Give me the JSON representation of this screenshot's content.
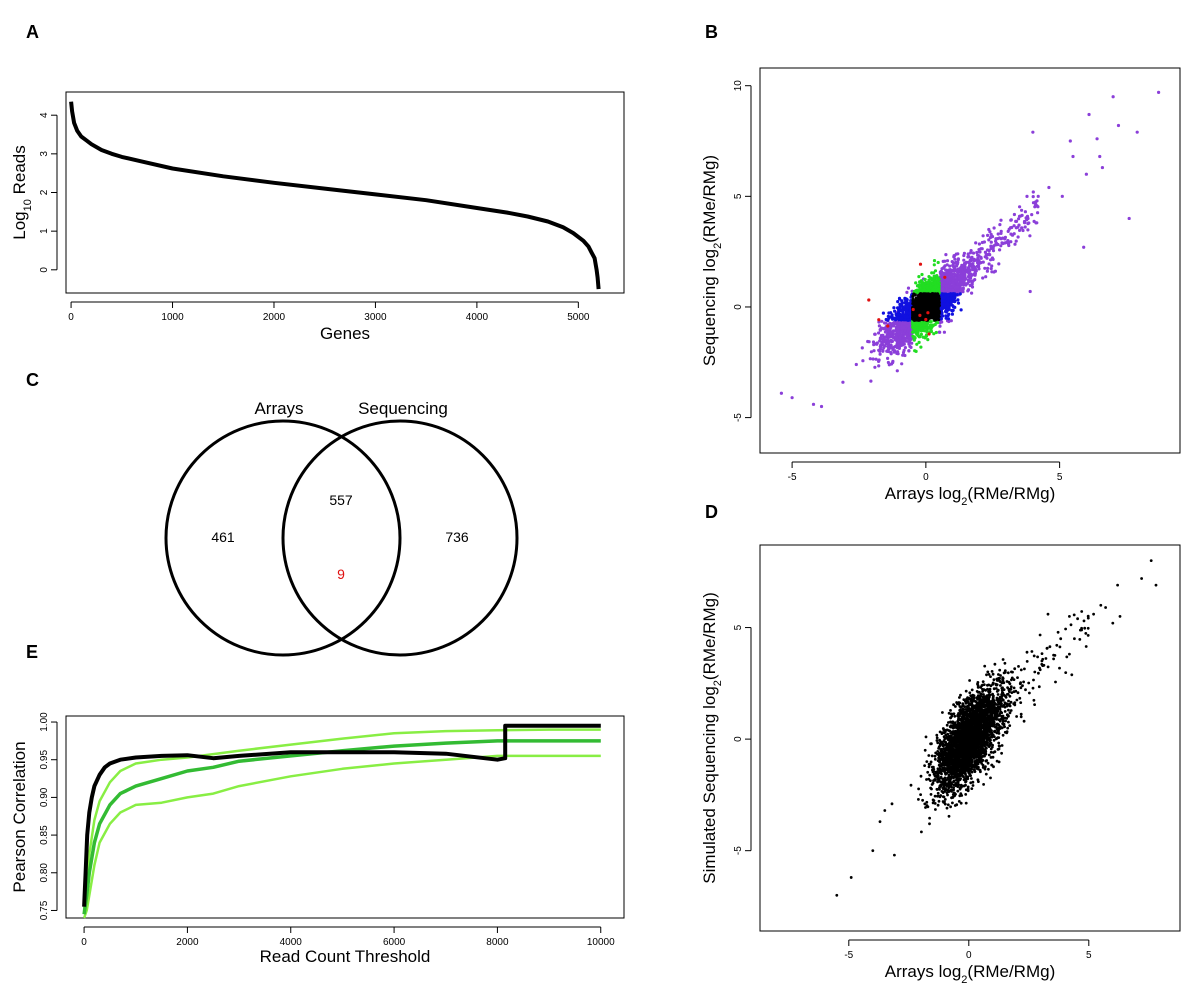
{
  "figure": {
    "panel_letters": [
      "A",
      "B",
      "C",
      "D",
      "E"
    ]
  },
  "chart_data": [
    {
      "id": "A",
      "type": "line",
      "title": "",
      "xlabel": "Genes",
      "ylabel": "Log10 Reads",
      "ylabel_parts": {
        "prefix": "Log",
        "sub": "10",
        "suffix": " Reads"
      },
      "xlim": [
        -50,
        5450
      ],
      "ylim": [
        -0.6,
        4.6
      ],
      "xticks": [
        0,
        1000,
        2000,
        3000,
        4000,
        5000
      ],
      "yticks": [
        0,
        1,
        2,
        3,
        4
      ],
      "series": [
        {
          "name": "reads",
          "color": "#000000",
          "x": [
            0,
            10,
            30,
            60,
            100,
            150,
            200,
            300,
            400,
            500,
            700,
            1000,
            1500,
            2000,
            2500,
            3000,
            3500,
            4000,
            4300,
            4500,
            4700,
            4850,
            4950,
            5050,
            5100,
            5130,
            5160,
            5180,
            5190,
            5200
          ],
          "y": [
            4.35,
            4.1,
            3.8,
            3.6,
            3.45,
            3.35,
            3.25,
            3.1,
            3.0,
            2.92,
            2.8,
            2.62,
            2.42,
            2.25,
            2.1,
            1.95,
            1.8,
            1.6,
            1.48,
            1.38,
            1.25,
            1.1,
            0.95,
            0.75,
            0.6,
            0.45,
            0.3,
            0.0,
            -0.2,
            -0.5
          ]
        }
      ]
    },
    {
      "id": "B",
      "type": "scatter",
      "xlabel": "Arrays log2(RMe/RMg)",
      "ylabel": "Sequencing log2(RMe/RMg)",
      "xlabel_parts": {
        "prefix": "Arrays log",
        "sub": "2",
        "suffix": "(RMe/RMg)"
      },
      "ylabel_parts": {
        "prefix": "Sequencing log",
        "sub": "2",
        "suffix": "(RMe/RMg)"
      },
      "xlim": [
        -6.2,
        9.5
      ],
      "ylim": [
        -6.6,
        10.8
      ],
      "xticks": [
        -5,
        0,
        5
      ],
      "yticks": [
        -5,
        0,
        5,
        10
      ],
      "groups": [
        {
          "name": "both",
          "color": "#8b3fd9"
        },
        {
          "name": "arrays-only",
          "color": "#1010e0"
        },
        {
          "name": "sequencing-only",
          "color": "#22dd22"
        },
        {
          "name": "neither",
          "color": "#000000"
        },
        {
          "name": "discordant",
          "color": "#e01010"
        }
      ],
      "highlight_points": [
        {
          "x": 8.7,
          "y": 9.7
        },
        {
          "x": 7.0,
          "y": 9.5
        },
        {
          "x": 6.1,
          "y": 8.7
        },
        {
          "x": 7.2,
          "y": 8.2
        },
        {
          "x": 4.0,
          "y": 7.9
        },
        {
          "x": 7.9,
          "y": 7.9
        },
        {
          "x": 6.4,
          "y": 7.6
        },
        {
          "x": 5.4,
          "y": 7.5
        },
        {
          "x": 6.5,
          "y": 6.8
        },
        {
          "x": 5.5,
          "y": 6.8
        },
        {
          "x": 6.6,
          "y": 6.3
        },
        {
          "x": 6.0,
          "y": 6.0
        },
        {
          "x": 7.6,
          "y": 4.0
        },
        {
          "x": 5.9,
          "y": 2.7
        },
        {
          "x": 3.9,
          "y": 0.7
        },
        {
          "x": -5.4,
          "y": -3.9
        },
        {
          "x": -5.0,
          "y": -4.1
        },
        {
          "x": -4.2,
          "y": -4.4
        },
        {
          "x": -3.9,
          "y": -4.5
        },
        {
          "x": -3.1,
          "y": -3.4
        },
        {
          "x": -2.6,
          "y": -2.6
        },
        {
          "x": 5.1,
          "y": 5.0
        },
        {
          "x": 4.6,
          "y": 5.4
        },
        {
          "x": 4.2,
          "y": 5.0
        }
      ]
    },
    {
      "id": "C",
      "type": "venn",
      "sets": [
        "Arrays",
        "Sequencing"
      ],
      "counts": {
        "left_only": "461",
        "intersection": "557",
        "intersection_discordant": "9",
        "right_only": "736"
      },
      "discordant_color": "#e01010"
    },
    {
      "id": "D",
      "type": "scatter",
      "xlabel": "Arrays log2(RMe/RMg)",
      "ylabel": "Simulated Sequencing log2(RMe/RMg)",
      "xlabel_parts": {
        "prefix": "Arrays log",
        "sub": "2",
        "suffix": "(RMe/RMg)"
      },
      "ylabel_parts": {
        "prefix": "Simulated Sequencing log",
        "sub": "2",
        "suffix": "(RMe/RMg)"
      },
      "xlim": [
        -8.7,
        8.8
      ],
      "ylim": [
        -8.6,
        8.7
      ],
      "xticks": [
        -5,
        0,
        5
      ],
      "yticks": [
        -5,
        0,
        5
      ],
      "color": "#000000",
      "highlight_points": [
        {
          "x": 7.6,
          "y": 8.0
        },
        {
          "x": 7.2,
          "y": 7.2
        },
        {
          "x": 7.8,
          "y": 6.9
        },
        {
          "x": 6.2,
          "y": 6.9
        },
        {
          "x": 5.5,
          "y": 6.0
        },
        {
          "x": 6.3,
          "y": 5.5
        },
        {
          "x": 5.7,
          "y": 5.9
        },
        {
          "x": 5.2,
          "y": 5.6
        },
        {
          "x": 4.8,
          "y": 5.3
        },
        {
          "x": 6.0,
          "y": 5.2
        },
        {
          "x": 3.3,
          "y": 5.6
        },
        {
          "x": 4.4,
          "y": 4.5
        },
        {
          "x": -5.5,
          "y": -7.0
        },
        {
          "x": -4.9,
          "y": -6.2
        },
        {
          "x": -4.0,
          "y": -5.0
        },
        {
          "x": -3.1,
          "y": -5.2
        },
        {
          "x": -3.7,
          "y": -3.7
        },
        {
          "x": -3.5,
          "y": -3.2
        },
        {
          "x": -3.2,
          "y": -2.9
        }
      ]
    },
    {
      "id": "E",
      "type": "line",
      "xlabel": "Read Count Threshold",
      "ylabel": "Pearson Correlation",
      "xlim": [
        -350,
        10450
      ],
      "ylim": [
        0.74,
        1.008
      ],
      "xticks": [
        0,
        2000,
        4000,
        6000,
        8000,
        10000
      ],
      "yticks": [
        0.75,
        0.8,
        0.85,
        0.9,
        0.95,
        1.0
      ],
      "ytick_labels": [
        "0.75",
        "0.80",
        "0.85",
        "0.90",
        "0.95",
        "1.00"
      ],
      "series": [
        {
          "name": "observed",
          "color": "#000000",
          "x": [
            0,
            30,
            60,
            100,
            150,
            200,
            300,
            400,
            500,
            700,
            1000,
            1500,
            2000,
            2500,
            3000,
            4000,
            5000,
            6000,
            7000,
            8000,
            8150,
            8150,
            9000,
            10000
          ],
          "y": [
            0.755,
            0.8,
            0.85,
            0.88,
            0.9,
            0.915,
            0.93,
            0.94,
            0.945,
            0.95,
            0.953,
            0.955,
            0.956,
            0.952,
            0.955,
            0.96,
            0.96,
            0.96,
            0.958,
            0.95,
            0.952,
            0.995,
            0.995,
            0.995
          ]
        },
        {
          "name": "simulated-upper",
          "color": "#88ee44",
          "x": [
            0,
            50,
            100,
            200,
            300,
            500,
            700,
            1000,
            1500,
            2000,
            3000,
            4000,
            5000,
            6000,
            7000,
            8000,
            9000,
            10000
          ],
          "y": [
            0.75,
            0.79,
            0.825,
            0.87,
            0.895,
            0.92,
            0.935,
            0.945,
            0.95,
            0.953,
            0.962,
            0.97,
            0.978,
            0.985,
            0.988,
            0.989,
            0.99,
            0.99
          ]
        },
        {
          "name": "simulated-median",
          "color": "#33bb33",
          "x": [
            0,
            50,
            100,
            200,
            300,
            500,
            700,
            1000,
            1500,
            2000,
            2500,
            3000,
            4000,
            5000,
            6000,
            7000,
            8000,
            9000,
            10000
          ],
          "y": [
            0.745,
            0.77,
            0.8,
            0.84,
            0.865,
            0.89,
            0.905,
            0.915,
            0.925,
            0.935,
            0.94,
            0.948,
            0.955,
            0.962,
            0.968,
            0.972,
            0.975,
            0.975,
            0.975
          ]
        },
        {
          "name": "simulated-lower",
          "color": "#88ee44",
          "x": [
            0,
            50,
            100,
            200,
            300,
            500,
            700,
            1000,
            1500,
            2000,
            2500,
            3000,
            4000,
            5000,
            6000,
            7000,
            8000,
            9000,
            10000
          ],
          "y": [
            0.74,
            0.75,
            0.77,
            0.81,
            0.84,
            0.865,
            0.88,
            0.89,
            0.893,
            0.9,
            0.905,
            0.915,
            0.928,
            0.938,
            0.945,
            0.95,
            0.955,
            0.955,
            0.955
          ]
        }
      ]
    }
  ]
}
